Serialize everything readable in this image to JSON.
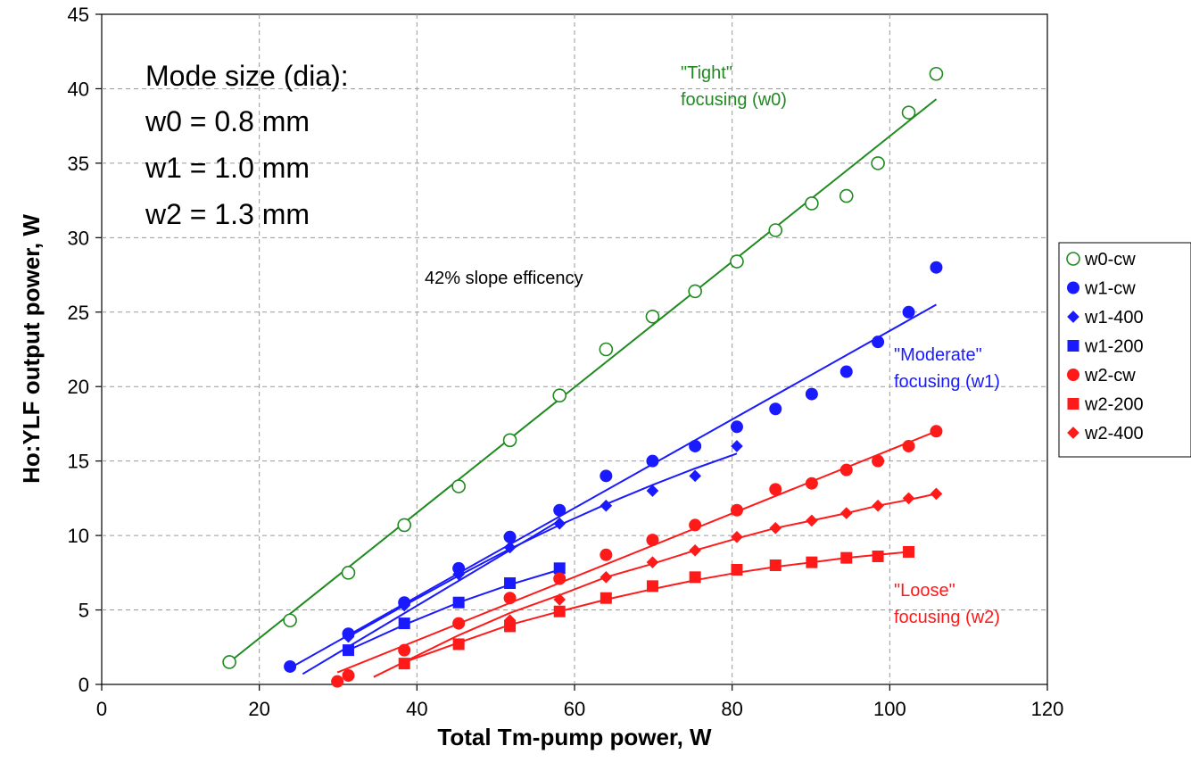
{
  "chart_data": {
    "type": "scatter",
    "title": "",
    "xlabel": "Total Tm-pump power, W",
    "ylabel": "Ho:YLF output power, W",
    "xlim": [
      0,
      120
    ],
    "ylim": [
      0,
      45
    ],
    "x_ticks": [
      0,
      20,
      40,
      60,
      80,
      100,
      120
    ],
    "y_ticks": [
      0,
      5,
      10,
      15,
      20,
      25,
      30,
      35,
      40,
      45
    ],
    "grid": true,
    "legend_position": "right",
    "series": [
      {
        "name": "w0-cw",
        "color": "#1f8a1f",
        "marker": "open-circle",
        "x": [
          16.2,
          23.9,
          31.3,
          38.4,
          45.3,
          51.8,
          58.1,
          64.0,
          69.9,
          75.3,
          80.6,
          85.5,
          90.1,
          94.5,
          98.5,
          102.4,
          105.9
        ],
        "y": [
          1.5,
          4.3,
          7.5,
          10.7,
          13.3,
          16.4,
          19.4,
          22.5,
          24.7,
          26.4,
          28.4,
          30.5,
          32.3,
          32.8,
          35.0,
          38.4,
          41.0
        ]
      },
      {
        "name": "w1-cw",
        "color": "#1a1aff",
        "marker": "circle",
        "x": [
          23.9,
          31.3,
          38.4,
          45.3,
          51.8,
          58.1,
          64.0,
          69.9,
          75.3,
          80.6,
          85.5,
          90.1,
          94.5,
          98.5,
          102.4,
          105.9
        ],
        "y": [
          1.2,
          3.4,
          5.5,
          7.8,
          9.9,
          11.7,
          14.0,
          15.0,
          16.0,
          17.3,
          18.5,
          19.5,
          21.0,
          23.0,
          25.0,
          28.0
        ]
      },
      {
        "name": "w1-400",
        "color": "#1a1aff",
        "marker": "diamond",
        "x": [
          31.3,
          38.4,
          45.3,
          51.8,
          58.1,
          64.0,
          69.9,
          75.3,
          80.6
        ],
        "y": [
          3.2,
          5.3,
          7.4,
          9.2,
          10.8,
          12.0,
          13.0,
          14.0,
          16.0
        ]
      },
      {
        "name": "w1-200",
        "color": "#1a1aff",
        "marker": "square",
        "x": [
          31.3,
          38.4,
          45.3,
          51.8,
          58.1
        ],
        "y": [
          2.3,
          4.1,
          5.5,
          6.8,
          7.8
        ]
      },
      {
        "name": "w2-cw",
        "color": "#ff1a1a",
        "marker": "circle",
        "x": [
          29.9,
          31.3,
          38.4,
          45.3,
          51.8,
          58.1,
          64.0,
          69.9,
          75.3,
          80.6,
          85.5,
          90.1,
          94.5,
          98.5,
          102.4,
          105.9
        ],
        "y": [
          0.2,
          0.6,
          2.3,
          4.1,
          5.8,
          7.1,
          8.7,
          9.7,
          10.7,
          11.7,
          13.1,
          13.5,
          14.4,
          15.0,
          16.0,
          17.0
        ]
      },
      {
        "name": "w2-200",
        "color": "#ff1a1a",
        "marker": "square",
        "x": [
          38.4,
          45.3,
          51.8,
          58.1,
          64.0,
          69.9,
          75.3,
          80.6,
          85.5,
          90.1,
          94.5,
          98.5,
          102.4
        ],
        "y": [
          1.4,
          2.7,
          3.9,
          4.9,
          5.8,
          6.6,
          7.2,
          7.7,
          8.0,
          8.2,
          8.5,
          8.6,
          8.9
        ]
      },
      {
        "name": "w2-400",
        "color": "#ff1a1a",
        "marker": "diamond",
        "x": [
          45.3,
          51.8,
          58.1,
          64.0,
          69.9,
          75.3,
          80.6,
          85.5,
          90.1,
          94.5,
          98.5,
          102.4,
          105.9
        ],
        "y": [
          2.7,
          4.3,
          5.7,
          7.2,
          8.2,
          9.0,
          9.9,
          10.5,
          11.0,
          11.5,
          12.0,
          12.5,
          12.8
        ]
      }
    ],
    "fit_lines": [
      {
        "color": "#1f8a1f",
        "points": [
          [
            16.2,
            1.5
          ],
          [
            105.9,
            39.3
          ]
        ]
      },
      {
        "color": "#1a1aff",
        "points": [
          [
            23.9,
            1.1
          ],
          [
            105.9,
            25.5
          ]
        ]
      },
      {
        "color": "#1a1aff",
        "points": [
          [
            31.3,
            3.2
          ],
          [
            38.4,
            5.3
          ],
          [
            45.3,
            7.3
          ],
          [
            51.8,
            9.1
          ],
          [
            58.1,
            10.7
          ],
          [
            64.0,
            12.1
          ],
          [
            69.9,
            13.4
          ],
          [
            75.3,
            14.5
          ],
          [
            80.6,
            15.5
          ]
        ]
      },
      {
        "color": "#1a1aff",
        "points": [
          [
            31.3,
            2.3
          ],
          [
            38.4,
            4.0
          ],
          [
            45.3,
            5.5
          ],
          [
            51.8,
            6.7
          ],
          [
            58.1,
            7.7
          ]
        ]
      },
      {
        "color": "#1a1aff",
        "points": [
          [
            25.5,
            0.7
          ],
          [
            58.1,
            11.0
          ]
        ]
      },
      {
        "color": "#ff1a1a",
        "points": [
          [
            29.9,
            0.8
          ],
          [
            105.9,
            17.0
          ]
        ]
      },
      {
        "color": "#ff1a1a",
        "points": [
          [
            38.4,
            1.5
          ],
          [
            45.3,
            2.8
          ],
          [
            51.8,
            4.0
          ],
          [
            58.1,
            4.9
          ],
          [
            64.0,
            5.7
          ],
          [
            69.9,
            6.4
          ],
          [
            75.3,
            7.0
          ],
          [
            80.6,
            7.5
          ],
          [
            85.5,
            7.9
          ],
          [
            90.1,
            8.2
          ],
          [
            94.5,
            8.5
          ],
          [
            98.5,
            8.7
          ],
          [
            102.4,
            8.9
          ]
        ]
      },
      {
        "color": "#ff1a1a",
        "points": [
          [
            34.5,
            0.5
          ],
          [
            45.3,
            3.3
          ],
          [
            51.8,
            4.8
          ],
          [
            58.1,
            6.0
          ],
          [
            64.0,
            7.2
          ],
          [
            69.9,
            8.1
          ],
          [
            75.3,
            9.0
          ],
          [
            80.6,
            9.8
          ],
          [
            85.5,
            10.5
          ],
          [
            90.1,
            11.0
          ],
          [
            94.5,
            11.5
          ],
          [
            98.5,
            12.0
          ],
          [
            102.4,
            12.4
          ],
          [
            105.9,
            12.8
          ]
        ]
      }
    ],
    "annotations": {
      "mode_size_title": "Mode size (dia):",
      "w0_size": "w0 = 0.8 mm",
      "w1_size": "w1 = 1.0 mm",
      "w2_size": "w2 = 1.3 mm",
      "slope": "42% slope efficency",
      "tight_line1": "\"Tight\"",
      "tight_line2": "focusing (w0)",
      "moderate_line1": "\"Moderate\"",
      "moderate_line2": "focusing (w1)",
      "loose_line1": "\"Loose\"",
      "loose_line2": "focusing (w2)"
    }
  }
}
